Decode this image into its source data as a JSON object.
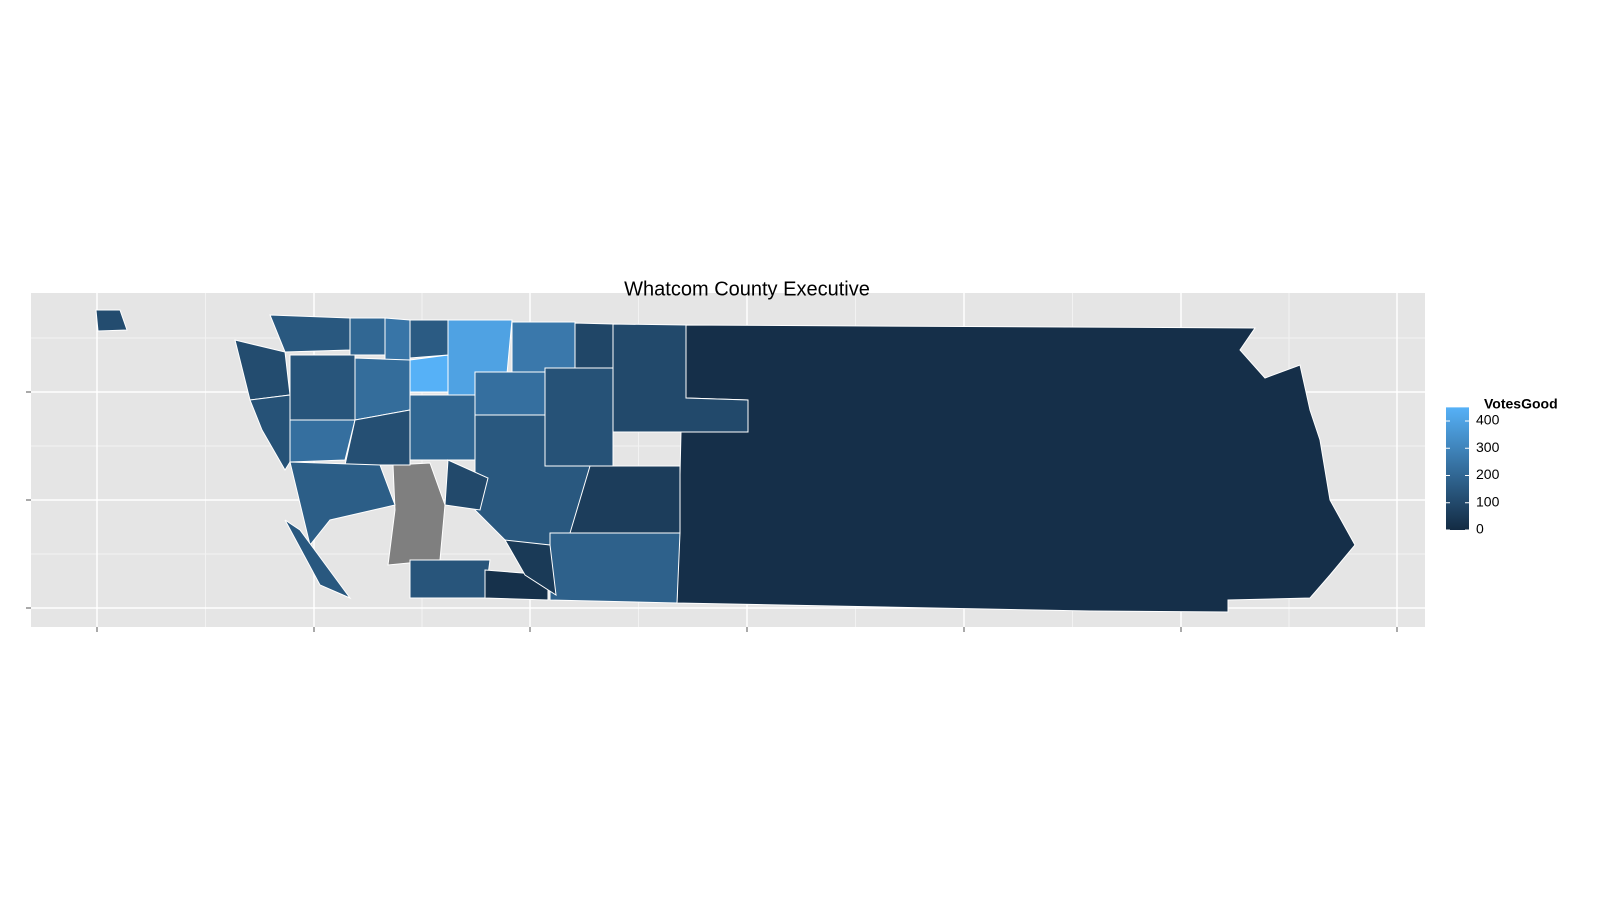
{
  "chart_data": {
    "type": "choropleth",
    "title": "Whatcom County Executive",
    "legend_title": "VotesGood",
    "values": [
      15,
      100,
      null,
      60,
      180,
      400,
      450,
      260,
      90,
      230,
      130,
      150,
      200,
      250,
      160,
      110,
      140,
      220,
      130,
      230,
      120,
      200,
      150,
      100,
      170,
      140,
      20,
      50,
      150,
      110
    ],
    "limits": [
      0,
      450
    ],
    "legend_ticks": [
      0,
      100,
      200,
      300,
      400
    ],
    "colors": {
      "low": "#132B43",
      "high": "#56B1F7",
      "na": "#7F7F7F",
      "border": "#ffffff",
      "panel": "#E5E5E5"
    }
  }
}
